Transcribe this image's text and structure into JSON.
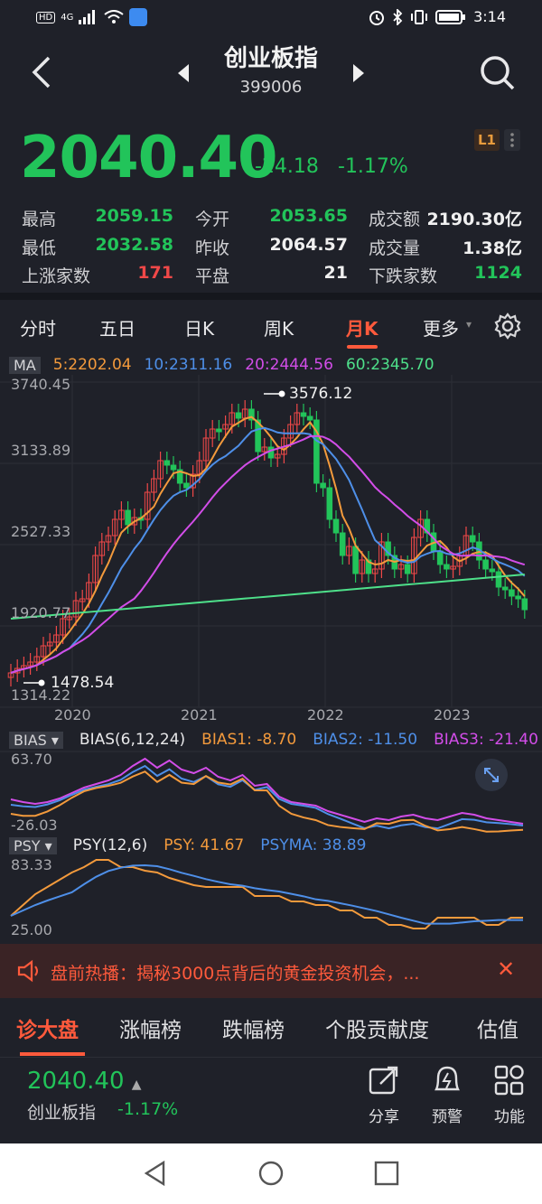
{
  "status_bar": {
    "hd": "HD",
    "net": "4G",
    "time": "3:14"
  },
  "header": {
    "title": "创业板指",
    "code": "399006"
  },
  "quote": {
    "price": "2040.40",
    "change": "-24.18",
    "change_pct": "-1.17%",
    "level_badge": "L1"
  },
  "stats": [
    {
      "label": "最高",
      "value": "2059.15",
      "color": "g"
    },
    {
      "label": "今开",
      "value": "2053.65",
      "color": "g"
    },
    {
      "label": "成交额",
      "value": "2190.30亿",
      "color": "w"
    },
    {
      "label": "最低",
      "value": "2032.58",
      "color": "g"
    },
    {
      "label": "昨收",
      "value": "2064.57",
      "color": "w"
    },
    {
      "label": "成交量",
      "value": "1.38亿",
      "color": "w"
    },
    {
      "label": "上涨家数",
      "value": "171",
      "color": "r"
    },
    {
      "label": "平盘",
      "value": "21",
      "color": "w"
    },
    {
      "label": "下跌家数",
      "value": "1124",
      "color": "g"
    }
  ],
  "tabs": [
    "分时",
    "五日",
    "日K",
    "周K",
    "月K",
    "更多"
  ],
  "active_tab": "月K",
  "chart": {
    "ma_label": "MA",
    "ma": [
      {
        "label": "5:2202.04",
        "color": "#f39a3c"
      },
      {
        "label": "10:2311.16",
        "color": "#4e8fe8"
      },
      {
        "label": "20:2444.56",
        "color": "#d24de8"
      },
      {
        "label": "60:2345.70",
        "color": "#4ee08a"
      }
    ],
    "y_labels": [
      "3740.45",
      "3133.89",
      "2527.33",
      "1920.77",
      "1314.22"
    ],
    "x_labels": [
      "2020",
      "2021",
      "2022",
      "2023"
    ],
    "high_mark": "3576.12",
    "low_mark": "1478.54"
  },
  "bias": {
    "box": "BIAS",
    "title": "BIAS(6,12,24)",
    "b1": "BIAS1: -8.70",
    "b2": "BIAS2: -11.50",
    "b3": "BIAS3: -21.40",
    "y_top": "63.70",
    "y_bottom": "-26.03"
  },
  "psy": {
    "box": "PSY",
    "title": "PSY(12,6)",
    "psy": "PSY: 41.67",
    "psyma": "PSYMA: 38.89",
    "y_top": "83.33",
    "y_bottom": "25.00"
  },
  "news": {
    "text": "盘前热播：揭秘3000点背后的黄金投资机会，..."
  },
  "bottom_tabs": [
    "诊大盘",
    "涨幅榜",
    "跌幅榜",
    "个股贡献度",
    "估值"
  ],
  "footer": {
    "price": "2040.40",
    "name": "创业板指",
    "pct": "-1.17%",
    "actions": [
      "分享",
      "预警",
      "功能"
    ]
  }
}
